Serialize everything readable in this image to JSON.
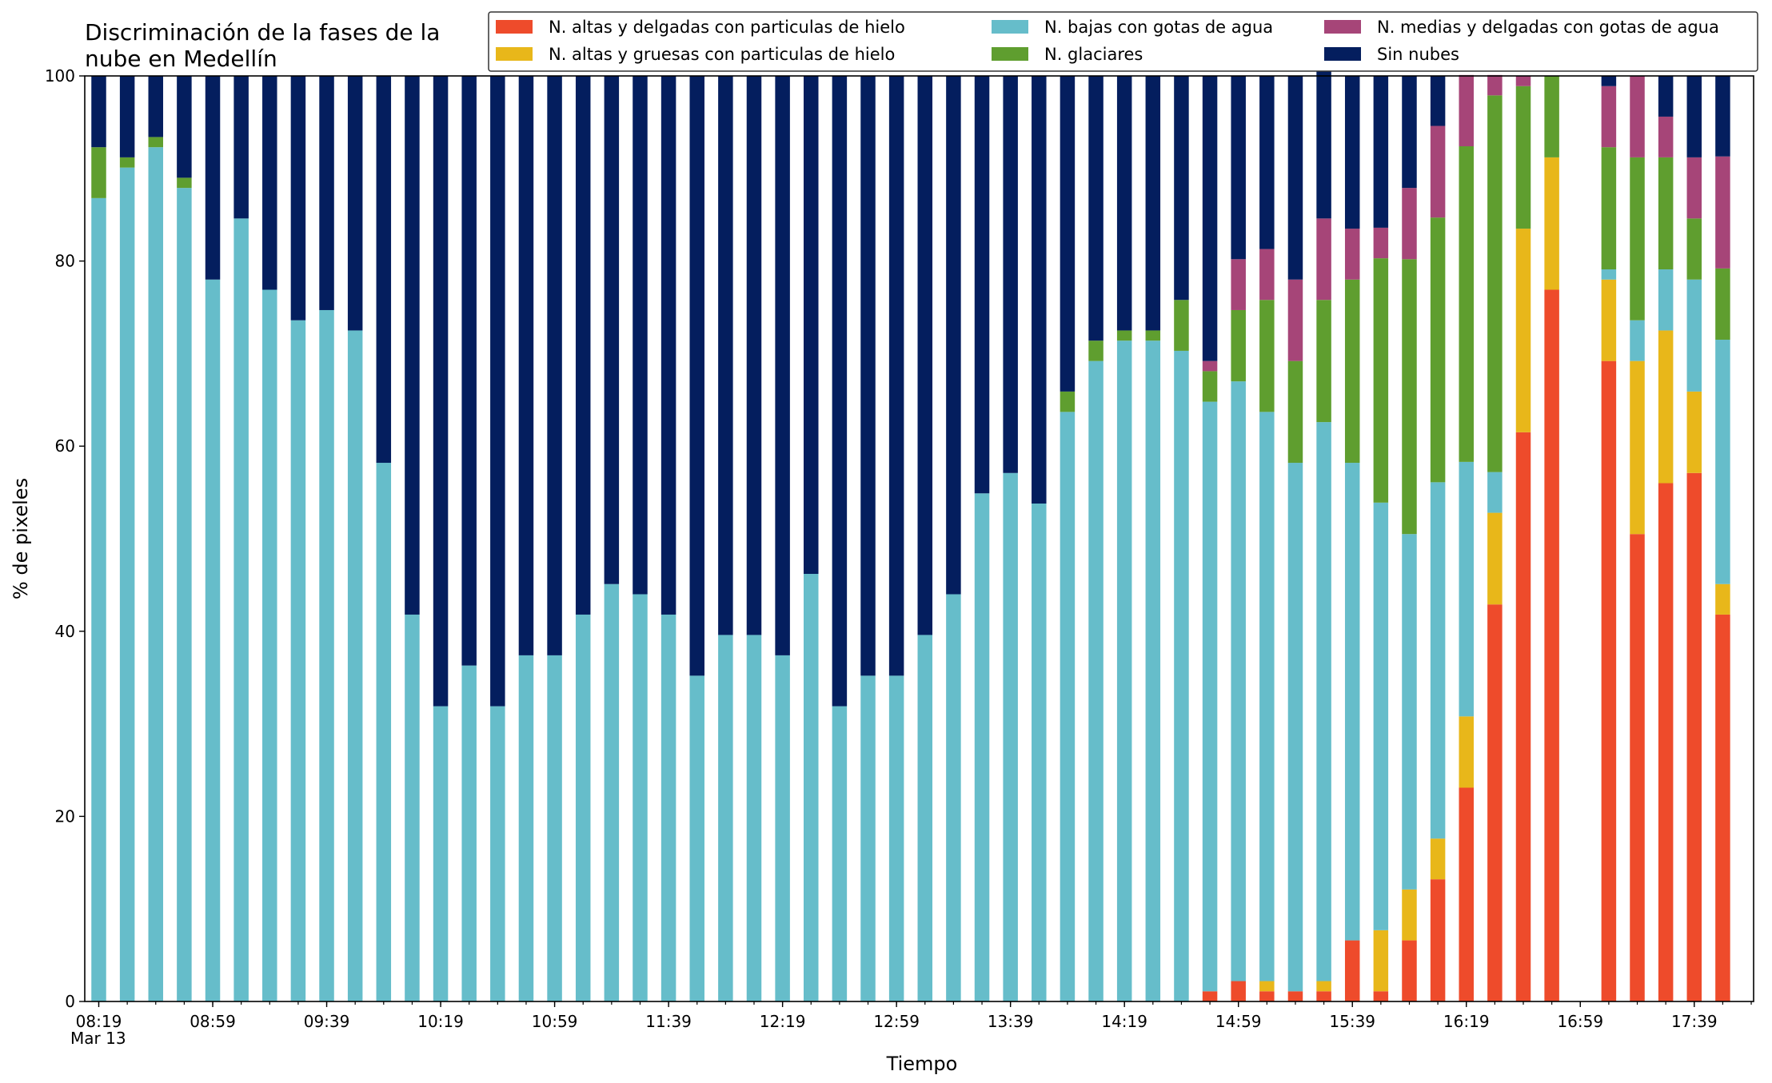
{
  "chart_data": {
    "type": "bar",
    "stacked": true,
    "title_lines": [
      "Discriminación de la fases de la",
      "nube en Medellín"
    ],
    "xlabel": "Tiempo",
    "ylabel": "% de pixeles",
    "ylim": [
      0,
      100
    ],
    "yticks": [
      0,
      20,
      40,
      60,
      80,
      100
    ],
    "date_label": "Mar 13",
    "legend_position": "top-right",
    "grid": false,
    "x": [
      "08:19",
      "08:29",
      "08:39",
      "08:49",
      "08:59",
      "09:09",
      "09:19",
      "09:29",
      "09:39",
      "09:49",
      "09:59",
      "10:09",
      "10:19",
      "10:29",
      "10:39",
      "10:49",
      "10:59",
      "11:09",
      "11:19",
      "11:29",
      "11:39",
      "11:49",
      "11:59",
      "12:09",
      "12:19",
      "12:29",
      "12:39",
      "12:49",
      "12:59",
      "13:09",
      "13:19",
      "13:29",
      "13:39",
      "13:49",
      "13:59",
      "14:09",
      "14:19",
      "14:29",
      "14:39",
      "14:49",
      "14:59",
      "15:09",
      "15:19",
      "15:29",
      "15:39",
      "15:49",
      "15:59",
      "16:09",
      "16:19",
      "16:29",
      "16:39",
      "16:49",
      "16:59",
      "17:09",
      "17:19",
      "17:29",
      "17:39",
      "17:49"
    ],
    "xticks": [
      {
        "index": 0,
        "label": "08:19"
      },
      {
        "index": 4,
        "label": "08:59"
      },
      {
        "index": 8,
        "label": "09:39"
      },
      {
        "index": 12,
        "label": "10:19"
      },
      {
        "index": 16,
        "label": "10:59"
      },
      {
        "index": 20,
        "label": "11:39"
      },
      {
        "index": 24,
        "label": "12:19"
      },
      {
        "index": 28,
        "label": "12:59"
      },
      {
        "index": 32,
        "label": "13:39"
      },
      {
        "index": 36,
        "label": "14:19"
      },
      {
        "index": 40,
        "label": "14:59"
      },
      {
        "index": 44,
        "label": "15:39"
      },
      {
        "index": 48,
        "label": "16:19"
      },
      {
        "index": 52,
        "label": "16:59"
      },
      {
        "index": 56,
        "label": "17:39"
      }
    ],
    "series": [
      {
        "name": "N. altas y delgadas con particulas de hielo",
        "color": "#ee4b2b",
        "values": [
          0,
          0,
          0,
          0,
          0,
          0,
          0,
          0,
          0,
          0,
          0,
          0,
          0,
          0,
          0,
          0,
          0,
          0,
          0,
          0,
          0,
          0,
          0,
          0,
          0,
          0,
          0,
          0,
          0,
          0,
          0,
          0,
          0,
          0,
          0,
          0,
          0,
          0,
          0,
          1.1,
          2.2,
          1.1,
          1.1,
          1.1,
          6.6,
          1.1,
          6.6,
          13.2,
          23.1,
          42.9,
          61.5,
          76.9,
          0,
          69.2,
          50.5,
          56,
          57.1,
          41.8
        ]
      },
      {
        "name": "N. altas y gruesas con particulas de hielo",
        "color": "#e8b71a",
        "values": [
          0,
          0,
          0,
          0,
          0,
          0,
          0,
          0,
          0,
          0,
          0,
          0,
          0,
          0,
          0,
          0,
          0,
          0,
          0,
          0,
          0,
          0,
          0,
          0,
          0,
          0,
          0,
          0,
          0,
          0,
          0,
          0,
          0,
          0,
          0,
          0,
          0,
          0,
          0,
          0,
          0,
          1.1,
          0,
          1.1,
          0,
          6.6,
          5.5,
          4.4,
          7.7,
          9.9,
          22,
          14.3,
          0,
          8.8,
          18.7,
          16.5,
          8.8,
          3.3
        ]
      },
      {
        "name": "N. bajas con gotas de agua",
        "color": "#66bdca",
        "values": [
          86.8,
          90.1,
          92.3,
          87.9,
          78,
          84.6,
          76.9,
          73.6,
          74.7,
          72.5,
          58.2,
          41.8,
          31.9,
          36.3,
          31.9,
          37.4,
          37.4,
          41.8,
          45.1,
          44,
          41.8,
          35.2,
          39.6,
          39.6,
          37.4,
          46.2,
          31.9,
          35.2,
          35.2,
          39.6,
          44,
          54.9,
          57.1,
          53.8,
          63.7,
          69.2,
          71.4,
          71.4,
          70.3,
          63.7,
          64.8,
          61.5,
          57.1,
          60.4,
          51.6,
          46.2,
          38.4,
          38.5,
          27.5,
          4.4,
          0,
          0,
          0,
          1.1,
          4.4,
          6.6,
          12.1,
          26.4
        ]
      },
      {
        "name": "N. glaciares",
        "color": "#5f9e2f",
        "values": [
          5.5,
          1.1,
          1.1,
          1.1,
          0,
          0,
          0,
          0,
          0,
          0,
          0,
          0,
          0,
          0,
          0,
          0,
          0,
          0,
          0,
          0,
          0,
          0,
          0,
          0,
          0,
          0,
          0,
          0,
          0,
          0,
          0,
          0,
          0,
          0,
          2.2,
          2.2,
          1.1,
          1.1,
          5.5,
          3.3,
          7.7,
          12.1,
          11,
          13.2,
          19.8,
          26.4,
          29.7,
          28.6,
          34.1,
          40.7,
          15.4,
          8.8,
          0,
          13.2,
          17.6,
          12.1,
          6.6,
          7.7
        ]
      },
      {
        "name": "N. medias y delgadas con gotas de agua",
        "color": "#a64578",
        "values": [
          0,
          0,
          0,
          0,
          0,
          0,
          0,
          0,
          0,
          0,
          0,
          0,
          0,
          0,
          0,
          0,
          0,
          0,
          0,
          0,
          0,
          0,
          0,
          0,
          0,
          0,
          0,
          0,
          0,
          0,
          0,
          0,
          0,
          0,
          0,
          0,
          0,
          0,
          0,
          1.1,
          5.5,
          5.5,
          8.8,
          8.8,
          5.5,
          3.3,
          7.7,
          9.9,
          7.7,
          2.2,
          1.1,
          0,
          0,
          6.6,
          8.8,
          4.4,
          6.6,
          12.1
        ]
      },
      {
        "name": "Sin nubes",
        "color": "#041e5e",
        "values": [
          7.7,
          8.8,
          6.6,
          11,
          22,
          15.4,
          23.1,
          26.4,
          25.3,
          27.5,
          41.8,
          58.2,
          68.1,
          63.7,
          68.1,
          62.6,
          62.6,
          58.2,
          54.9,
          56,
          58.2,
          64.8,
          60.4,
          60.4,
          62.6,
          53.8,
          68.1,
          64.8,
          64.8,
          60.4,
          56,
          45.1,
          42.9,
          46.2,
          34.1,
          28.6,
          27.5,
          27.5,
          24.2,
          30.8,
          19.8,
          18.7,
          22,
          16.5,
          16.5,
          16.4,
          12.1,
          5.4,
          0,
          0,
          0,
          0,
          0,
          1.1,
          0,
          4.4,
          8.8,
          8.7
        ]
      }
    ]
  }
}
